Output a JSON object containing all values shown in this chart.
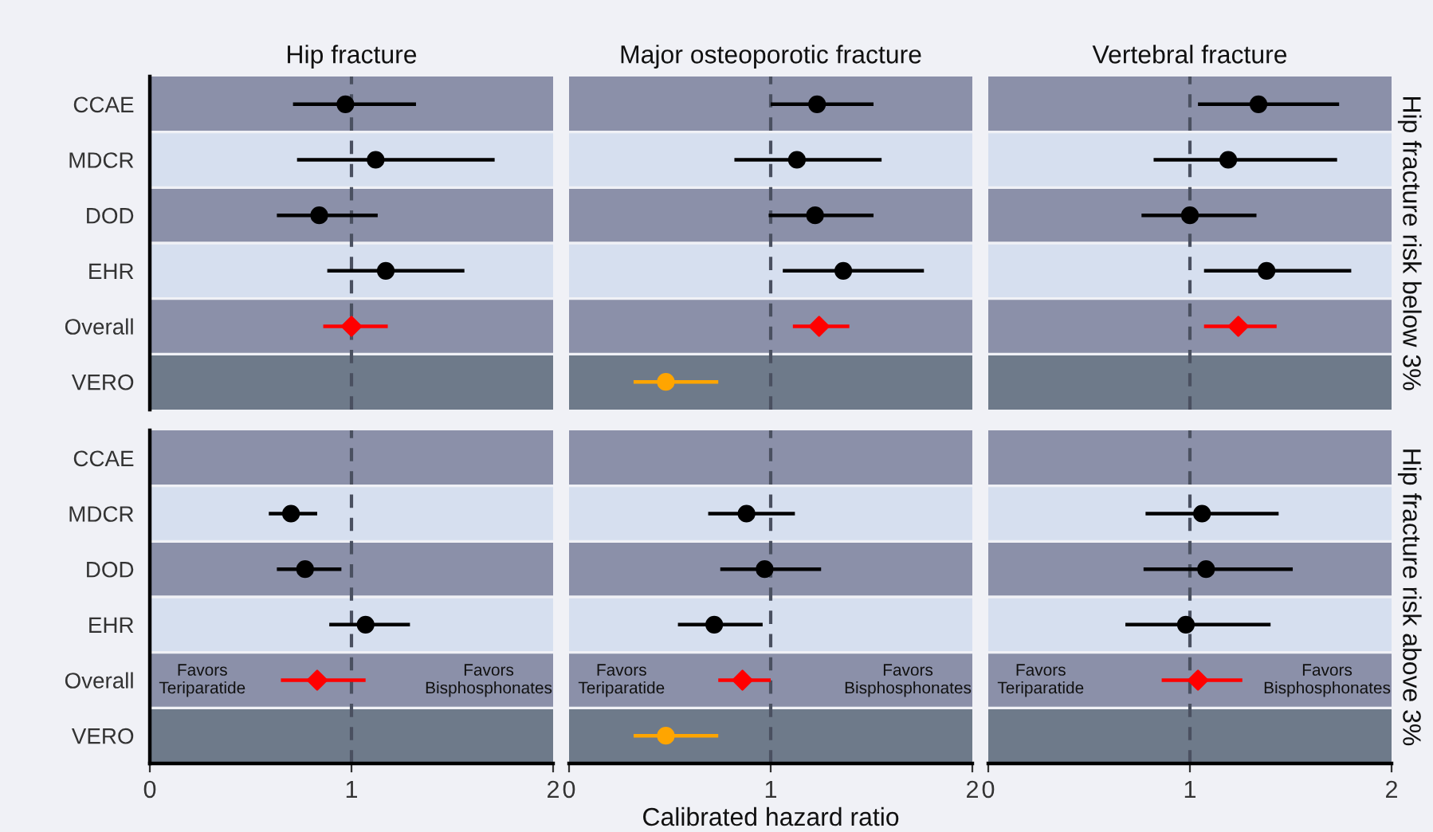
{
  "chart_data": [
    {
      "type": "scatter",
      "orientation": "horizontal",
      "title": "Hip fracture",
      "bands": [
        {
          "axis": "y",
          "from": "CCAE",
          "to": "CCAE",
          "color": "#8b90a9"
        },
        {
          "axis": "y",
          "from": "MDCR",
          "to": "MDCR",
          "color": "#d6dfef"
        },
        {
          "axis": "y",
          "from": "DOD",
          "to": "DOD",
          "color": "#8b90a9"
        },
        {
          "axis": "y",
          "from": "EHR",
          "to": "EHR",
          "color": "#d6dfef"
        },
        {
          "axis": "y",
          "from": "Overall",
          "to": "Overall",
          "color": "#8b90a9"
        },
        {
          "axis": "y",
          "from": "VERO",
          "to": "VERO",
          "color": "#6e7a8a"
        }
      ],
      "categories": [
        "CCAE",
        "MDCR",
        "DOD",
        "EHR",
        "Overall",
        "VERO"
      ],
      "xlim": [
        0,
        2
      ],
      "xticks": [
        0,
        1,
        2
      ],
      "tick_labels": "y",
      "ref_lines": [
        {
          "axis": "x",
          "value": 1,
          "line_style": "dashed",
          "color": "#4a5060"
        }
      ],
      "series": [
        {
          "type": "scatter",
          "color": "#000000",
          "marker": "circle",
          "values": [
            0.97,
            1.12,
            0.84,
            1.17,
            null,
            null
          ],
          "errors": [
            [
              0.71,
              1.32
            ],
            [
              0.73,
              1.71
            ],
            [
              0.63,
              1.13
            ],
            [
              0.88,
              1.56
            ],
            null,
            null
          ]
        },
        {
          "type": "scatter",
          "color": "#ff0000",
          "marker": "diamond",
          "values": [
            null,
            null,
            null,
            null,
            1.0,
            null
          ],
          "errors": [
            null,
            null,
            null,
            null,
            [
              0.86,
              1.18
            ],
            null
          ]
        },
        {
          "type": "scatter",
          "color": "#ffa500",
          "marker": "circle",
          "values": [
            null,
            null,
            null,
            null,
            null,
            null
          ],
          "errors": [
            null,
            null,
            null,
            null,
            null,
            null
          ]
        }
      ]
    },
    {
      "type": "scatter",
      "orientation": "horizontal",
      "title": "Major osteoporotic fracture",
      "bands": [
        {
          "axis": "y",
          "from": "CCAE",
          "to": "CCAE",
          "color": "#8b90a9"
        },
        {
          "axis": "y",
          "from": "MDCR",
          "to": "MDCR",
          "color": "#d6dfef"
        },
        {
          "axis": "y",
          "from": "DOD",
          "to": "DOD",
          "color": "#8b90a9"
        },
        {
          "axis": "y",
          "from": "EHR",
          "to": "EHR",
          "color": "#d6dfef"
        },
        {
          "axis": "y",
          "from": "Overall",
          "to": "Overall",
          "color": "#8b90a9"
        },
        {
          "axis": "y",
          "from": "VERO",
          "to": "VERO",
          "color": "#6e7a8a"
        }
      ],
      "categories": [
        "CCAE",
        "MDCR",
        "DOD",
        "EHR",
        "Overall",
        "VERO"
      ],
      "xlim": [
        0,
        2
      ],
      "xticks": [
        0,
        1,
        2
      ],
      "tick_labels": false,
      "ref_lines": [
        {
          "axis": "x",
          "value": 1,
          "line_style": "dashed",
          "color": "#4a5060"
        }
      ],
      "series": [
        {
          "type": "scatter",
          "color": "#000000",
          "marker": "circle",
          "values": [
            1.23,
            1.13,
            1.22,
            1.36,
            null,
            null
          ],
          "errors": [
            [
              1.0,
              1.51
            ],
            [
              0.82,
              1.55
            ],
            [
              0.99,
              1.51
            ],
            [
              1.06,
              1.76
            ],
            null,
            null
          ]
        },
        {
          "type": "scatter",
          "color": "#ff0000",
          "marker": "diamond",
          "values": [
            null,
            null,
            null,
            null,
            1.24,
            null
          ],
          "errors": [
            null,
            null,
            null,
            null,
            [
              1.11,
              1.39
            ],
            null
          ]
        },
        {
          "type": "scatter",
          "color": "#ffa500",
          "marker": "circle",
          "values": [
            null,
            null,
            null,
            null,
            null,
            0.48
          ],
          "errors": [
            null,
            null,
            null,
            null,
            null,
            [
              0.32,
              0.74
            ]
          ]
        }
      ]
    },
    {
      "type": "scatter",
      "orientation": "horizontal",
      "title": "Vertebral fracture",
      "y2label": "Hip fracture risk below 3%",
      "bands": [
        {
          "axis": "y",
          "from": "CCAE",
          "to": "CCAE",
          "color": "#8b90a9"
        },
        {
          "axis": "y",
          "from": "MDCR",
          "to": "MDCR",
          "color": "#d6dfef"
        },
        {
          "axis": "y",
          "from": "DOD",
          "to": "DOD",
          "color": "#8b90a9"
        },
        {
          "axis": "y",
          "from": "EHR",
          "to": "EHR",
          "color": "#d6dfef"
        },
        {
          "axis": "y",
          "from": "Overall",
          "to": "Overall",
          "color": "#8b90a9"
        },
        {
          "axis": "y",
          "from": "VERO",
          "to": "VERO",
          "color": "#6e7a8a"
        }
      ],
      "categories": [
        "CCAE",
        "MDCR",
        "DOD",
        "EHR",
        "Overall",
        "VERO"
      ],
      "xlim": [
        0,
        2
      ],
      "xticks": [
        0,
        1,
        2
      ],
      "tick_labels": false,
      "ref_lines": [
        {
          "axis": "x",
          "value": 1,
          "line_style": "dashed",
          "color": "#4a5060"
        }
      ],
      "series": [
        {
          "type": "scatter",
          "color": "#000000",
          "marker": "circle",
          "values": [
            1.34,
            1.19,
            1.0,
            1.38,
            null,
            null
          ],
          "errors": [
            [
              1.04,
              1.74
            ],
            [
              0.82,
              1.73
            ],
            [
              0.76,
              1.33
            ],
            [
              1.07,
              1.8
            ],
            null,
            null
          ]
        },
        {
          "type": "scatter",
          "color": "#ff0000",
          "marker": "diamond",
          "values": [
            null,
            null,
            null,
            null,
            1.24,
            null
          ],
          "errors": [
            null,
            null,
            null,
            null,
            [
              1.07,
              1.43
            ],
            null
          ]
        },
        {
          "type": "scatter",
          "color": "#ffa500",
          "marker": "circle",
          "values": [
            null,
            null,
            null,
            null,
            null,
            null
          ],
          "errors": [
            null,
            null,
            null,
            null,
            null,
            null
          ]
        }
      ]
    },
    {
      "type": "scatter",
      "orientation": "horizontal",
      "bands": [
        {
          "axis": "y",
          "from": "CCAE",
          "to": "CCAE",
          "color": "#8b90a9"
        },
        {
          "axis": "y",
          "from": "MDCR",
          "to": "MDCR",
          "color": "#d6dfef"
        },
        {
          "axis": "y",
          "from": "DOD",
          "to": "DOD",
          "color": "#8b90a9"
        },
        {
          "axis": "y",
          "from": "EHR",
          "to": "EHR",
          "color": "#d6dfef"
        },
        {
          "axis": "y",
          "from": "Overall",
          "to": "Overall",
          "color": "#8b90a9"
        },
        {
          "axis": "y",
          "from": "VERO",
          "to": "VERO",
          "color": "#6e7a8a"
        }
      ],
      "categories": [
        "CCAE",
        "MDCR",
        "DOD",
        "EHR",
        "Overall",
        "VERO"
      ],
      "xlim": [
        0,
        2
      ],
      "xticks": [
        0,
        1,
        2
      ],
      "annotations": [
        "Favors\nTeriparatide",
        "Favors\nBisphosphonates"
      ],
      "ref_lines": [
        {
          "axis": "x",
          "value": 1,
          "line_style": "dashed",
          "color": "#4a5060"
        }
      ],
      "series": [
        {
          "type": "scatter",
          "color": "#000000",
          "marker": "circle",
          "values": [
            null,
            0.7,
            0.77,
            1.07,
            null,
            null
          ],
          "errors": [
            null,
            [
              0.59,
              0.83
            ],
            [
              0.63,
              0.95
            ],
            [
              0.89,
              1.29
            ],
            null,
            null
          ]
        },
        {
          "type": "scatter",
          "color": "#ff0000",
          "marker": "diamond",
          "values": [
            null,
            null,
            null,
            null,
            0.83,
            null
          ],
          "errors": [
            null,
            null,
            null,
            null,
            [
              0.65,
              1.07
            ],
            null
          ]
        },
        {
          "type": "scatter",
          "color": "#ffa500",
          "marker": "circle",
          "values": [
            null,
            null,
            null,
            null,
            null,
            null
          ],
          "errors": [
            null,
            null,
            null,
            null,
            null,
            null
          ]
        }
      ]
    },
    {
      "type": "scatter",
      "orientation": "horizontal",
      "xlabel": "Calibrated hazard ratio",
      "bands": [
        {
          "axis": "y",
          "from": "CCAE",
          "to": "CCAE",
          "color": "#8b90a9"
        },
        {
          "axis": "y",
          "from": "MDCR",
          "to": "MDCR",
          "color": "#d6dfef"
        },
        {
          "axis": "y",
          "from": "DOD",
          "to": "DOD",
          "color": "#8b90a9"
        },
        {
          "axis": "y",
          "from": "EHR",
          "to": "EHR",
          "color": "#d6dfef"
        },
        {
          "axis": "y",
          "from": "Overall",
          "to": "Overall",
          "color": "#8b90a9"
        },
        {
          "axis": "y",
          "from": "VERO",
          "to": "VERO",
          "color": "#6e7a8a"
        }
      ],
      "categories": [
        "CCAE",
        "MDCR",
        "DOD",
        "EHR",
        "Overall",
        "VERO"
      ],
      "xlim": [
        0,
        2
      ],
      "xticks": [
        0,
        1,
        2
      ],
      "tick_labels": "x",
      "annotations": [
        "Favors\nTeriparatide",
        "Favors\nBisphosphonates"
      ],
      "ref_lines": [
        {
          "axis": "x",
          "value": 1,
          "line_style": "dashed",
          "color": "#4a5060"
        }
      ],
      "series": [
        {
          "type": "scatter",
          "color": "#000000",
          "marker": "circle",
          "values": [
            null,
            0.88,
            0.97,
            0.72,
            null,
            null
          ],
          "errors": [
            null,
            [
              0.69,
              1.12
            ],
            [
              0.75,
              1.25
            ],
            [
              0.54,
              0.96
            ],
            null,
            null
          ]
        },
        {
          "type": "scatter",
          "color": "#ff0000",
          "marker": "diamond",
          "values": [
            null,
            null,
            null,
            null,
            0.86,
            null
          ],
          "errors": [
            null,
            null,
            null,
            null,
            [
              0.74,
              1.0
            ],
            null
          ]
        },
        {
          "type": "scatter",
          "color": "#ffa500",
          "marker": "circle",
          "values": [
            null,
            null,
            null,
            null,
            null,
            0.48
          ],
          "errors": [
            null,
            null,
            null,
            null,
            null,
            [
              0.32,
              0.74
            ]
          ]
        }
      ]
    },
    {
      "type": "scatter",
      "orientation": "horizontal",
      "y2label": "Hip fracture risk above 3%",
      "bands": [
        {
          "axis": "y",
          "from": "CCAE",
          "to": "CCAE",
          "color": "#8b90a9"
        },
        {
          "axis": "y",
          "from": "MDCR",
          "to": "MDCR",
          "color": "#d6dfef"
        },
        {
          "axis": "y",
          "from": "DOD",
          "to": "DOD",
          "color": "#8b90a9"
        },
        {
          "axis": "y",
          "from": "EHR",
          "to": "EHR",
          "color": "#d6dfef"
        },
        {
          "axis": "y",
          "from": "Overall",
          "to": "Overall",
          "color": "#8b90a9"
        },
        {
          "axis": "y",
          "from": "VERO",
          "to": "VERO",
          "color": "#6e7a8a"
        }
      ],
      "categories": [
        "CCAE",
        "MDCR",
        "DOD",
        "EHR",
        "Overall",
        "VERO"
      ],
      "xlim": [
        0,
        2
      ],
      "xticks": [
        0,
        1,
        2
      ],
      "tick_labels": "x",
      "annotations": [
        "Favors\nTeriparatide",
        "Favors\nBisphosphonates"
      ],
      "ref_lines": [
        {
          "axis": "x",
          "value": 1,
          "line_style": "dashed",
          "color": "#4a5060"
        }
      ],
      "series": [
        {
          "type": "scatter",
          "color": "#000000",
          "marker": "circle",
          "values": [
            null,
            1.06,
            1.08,
            0.98,
            null,
            null
          ],
          "errors": [
            null,
            [
              0.78,
              1.44
            ],
            [
              0.77,
              1.51
            ],
            [
              0.68,
              1.4
            ],
            null,
            null
          ]
        },
        {
          "type": "scatter",
          "color": "#ff0000",
          "marker": "diamond",
          "values": [
            null,
            null,
            null,
            null,
            1.04,
            null
          ],
          "errors": [
            null,
            null,
            null,
            null,
            [
              0.86,
              1.26
            ],
            null
          ]
        },
        {
          "type": "scatter",
          "color": "#ffa500",
          "marker": "circle",
          "values": [
            null,
            null,
            null,
            null,
            null,
            null
          ],
          "errors": [
            null,
            null,
            null,
            null,
            null,
            null
          ]
        }
      ]
    }
  ]
}
